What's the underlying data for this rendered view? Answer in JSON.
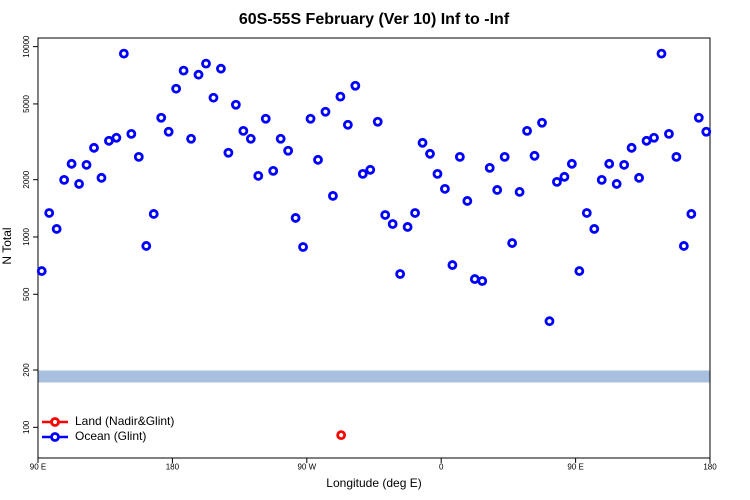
{
  "chart_data": {
    "type": "scatter",
    "title": "60S-55S February (Ver 10)   Inf to -Inf",
    "x_label": "Longitude (deg E)",
    "y_label": "N Total",
    "log_y": true,
    "xlim": [
      90,
      540
    ],
    "ylim": [
      69,
      11100
    ],
    "xticks": [
      {
        "value": 90,
        "label": "90 E"
      },
      180,
      {
        "value": 270,
        "label": "90 W"
      },
      {
        "value": 360,
        "label": "0"
      },
      {
        "value": 450,
        "label": "90 E"
      },
      {
        "value": 540,
        "label": "180"
      }
    ],
    "yticks": [
      100,
      200,
      500,
      1000,
      2000,
      5000,
      10000
    ],
    "reference_band": {
      "value": 185,
      "color": "#a9bfdf"
    },
    "legend": "bottom-left",
    "series": [
      {
        "name": "Land (Nadir&Glint)",
        "color": "#ff0000",
        "x": [
          293
        ],
        "values": [
          91
        ]
      },
      {
        "name": "Ocean (Glint)",
        "color": "#0000ff",
        "x": [
          92.5,
          97.5,
          102.5,
          107.5,
          112.5,
          117.5,
          122.5,
          127.5,
          132.5,
          137.5,
          142.5,
          147.5,
          152.5,
          157.5,
          162.5,
          167.5,
          172.5,
          177.5,
          182.5,
          187.5,
          192.5,
          197.5,
          202.5,
          207.5,
          212.5,
          217.5,
          222.5,
          227.5,
          232.5,
          237.5,
          242.5,
          247.5,
          252.5,
          257.5,
          262.5,
          267.5,
          272.5,
          277.5,
          282.5,
          287.5,
          292.5,
          297.5,
          302.5,
          307.5,
          312.5,
          317.5,
          322.5,
          327.5,
          332.5,
          337.5,
          342.5,
          347.5,
          352.5,
          357.5,
          362.5,
          367.5,
          372.5,
          377.5,
          382.5,
          387.5,
          392.5,
          397.5,
          402.5,
          407.5,
          412.5,
          417.5,
          422.5,
          427.5,
          432.5,
          437.5,
          442.5,
          447.5,
          452.5,
          457.5,
          462.5,
          467.5,
          472.5,
          477.5,
          482.5,
          487.5,
          492.5,
          497.5,
          502.5,
          507.5,
          512.5,
          517.5,
          522.5,
          527.5,
          532.5,
          537.5
        ],
        "values": [
          662,
          1337,
          1102,
          1995,
          2423,
          1900,
          2393,
          2940,
          2045,
          3200,
          3320,
          9190,
          3480,
          2636,
          897,
          1321,
          4230,
          3570,
          6010,
          7480,
          3280,
          7120,
          8140,
          5390,
          7660,
          2770,
          4950,
          3610,
          3280,
          2095,
          4180,
          2225,
          3280,
          2837,
          1259,
          886,
          4180,
          2543,
          4550,
          1644,
          5460,
          3885,
          6230,
          2145,
          2254,
          4030,
          1305,
          1170,
          639,
          1129,
          1337,
          3124,
          2735,
          2145,
          1790,
          712,
          2636,
          1546,
          601,
          587,
          2307,
          1766,
          2636,
          929,
          1725,
          3610,
          2670,
          3981,
          361,
          1947,
          2070,
          2423,
          662,
          1337,
          1102,
          1995,
          2423,
          1900,
          2393,
          2940,
          2045,
          3200,
          3320,
          9190,
          3480,
          2636,
          897,
          1321,
          4230,
          3570
        ]
      }
    ]
  }
}
